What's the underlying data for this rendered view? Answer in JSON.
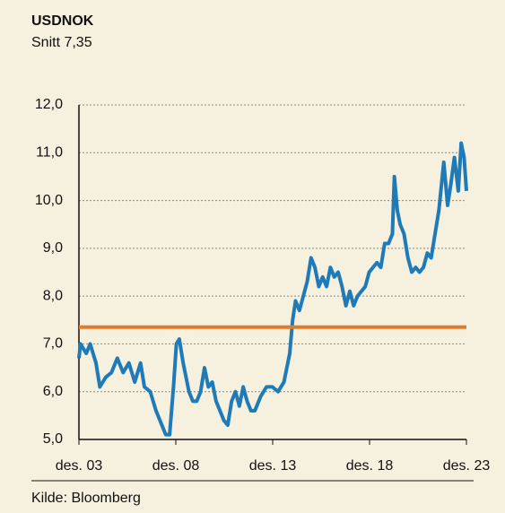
{
  "chart_data": {
    "type": "line",
    "title": "USDNOK",
    "subtitle": "Snitt 7,35",
    "source": "Kilde: Bloomberg",
    "average": 7.35,
    "average_color": "#e07b2a",
    "grid": true,
    "ylim": [
      5,
      12
    ],
    "yticks": [
      {
        "value": 5,
        "label": "5,0"
      },
      {
        "value": 6,
        "label": "6,0"
      },
      {
        "value": 7,
        "label": "7,0"
      },
      {
        "value": 8,
        "label": "8,0"
      },
      {
        "value": 9,
        "label": "9,0"
      },
      {
        "value": 10,
        "label": "10,0"
      },
      {
        "value": 11,
        "label": "11,0"
      },
      {
        "value": 12,
        "label": "12,0"
      }
    ],
    "xlim": [
      2003.92,
      2023.92
    ],
    "xticks": [
      {
        "value": 2003.92,
        "label": "des. 03"
      },
      {
        "value": 2008.92,
        "label": "des. 08"
      },
      {
        "value": 2013.92,
        "label": "des. 13"
      },
      {
        "value": 2018.92,
        "label": "des. 18"
      },
      {
        "value": 2023.92,
        "label": "des. 23"
      }
    ],
    "x": [
      2003.92,
      2004.0,
      2004.3,
      2004.5,
      2004.8,
      2005.0,
      2005.3,
      2005.6,
      2005.9,
      2006.2,
      2006.5,
      2006.8,
      2007.1,
      2007.3,
      2007.6,
      2007.9,
      2008.2,
      2008.4,
      2008.6,
      2008.8,
      2008.95,
      2009.1,
      2009.3,
      2009.6,
      2009.8,
      2010.0,
      2010.2,
      2010.4,
      2010.6,
      2010.8,
      2011.0,
      2011.2,
      2011.4,
      2011.6,
      2011.8,
      2012.0,
      2012.2,
      2012.4,
      2012.6,
      2012.8,
      2013.0,
      2013.3,
      2013.6,
      2013.9,
      2014.2,
      2014.5,
      2014.8,
      2014.95,
      2015.1,
      2015.3,
      2015.5,
      2015.7,
      2015.9,
      2016.1,
      2016.3,
      2016.5,
      2016.7,
      2016.9,
      2017.1,
      2017.3,
      2017.5,
      2017.7,
      2017.9,
      2018.1,
      2018.3,
      2018.5,
      2018.7,
      2018.9,
      2019.1,
      2019.3,
      2019.5,
      2019.7,
      2019.9,
      2020.1,
      2020.2,
      2020.35,
      2020.5,
      2020.7,
      2020.9,
      2021.1,
      2021.3,
      2021.5,
      2021.7,
      2021.9,
      2022.1,
      2022.3,
      2022.5,
      2022.75,
      2022.95,
      2023.1,
      2023.3,
      2023.5,
      2023.65,
      2023.8,
      2023.92
    ],
    "series": [
      {
        "color": "#1f7ab8",
        "values": [
          6.7,
          7.0,
          6.8,
          7.0,
          6.6,
          6.1,
          6.3,
          6.4,
          6.7,
          6.4,
          6.6,
          6.2,
          6.6,
          6.1,
          6.0,
          5.6,
          5.3,
          5.1,
          5.1,
          6.1,
          7.0,
          7.1,
          6.6,
          6.0,
          5.8,
          5.8,
          6.0,
          6.5,
          6.1,
          6.2,
          5.8,
          5.6,
          5.4,
          5.3,
          5.8,
          6.0,
          5.7,
          6.1,
          5.8,
          5.6,
          5.6,
          5.9,
          6.1,
          6.1,
          6.0,
          6.2,
          6.8,
          7.5,
          7.9,
          7.7,
          8.0,
          8.3,
          8.8,
          8.6,
          8.2,
          8.4,
          8.2,
          8.6,
          8.4,
          8.5,
          8.2,
          7.8,
          8.1,
          7.8,
          8.0,
          8.1,
          8.2,
          8.5,
          8.6,
          8.7,
          8.6,
          9.1,
          9.1,
          9.3,
          10.5,
          9.8,
          9.5,
          9.3,
          8.8,
          8.5,
          8.6,
          8.5,
          8.6,
          8.9,
          8.8,
          9.3,
          9.8,
          10.8,
          9.9,
          10.3,
          10.9,
          10.2,
          11.2,
          10.9,
          10.2
        ]
      }
    ]
  }
}
